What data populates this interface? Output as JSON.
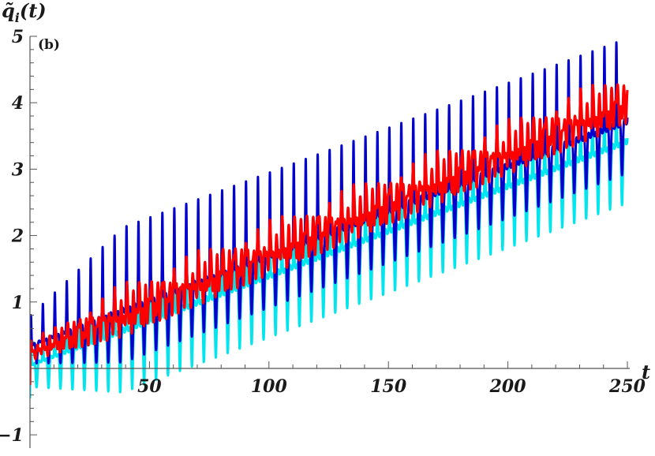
{
  "chart_data": {
    "type": "line",
    "title": "",
    "panel_label": "(b)",
    "xlabel": "t",
    "ylabel": "q̃ᵢ(t)",
    "ylabel_base": "q̃",
    "ylabel_sub": "i",
    "ylabel_arg": "(t)",
    "xlim": [
      0,
      250
    ],
    "ylim": [
      -1.2,
      5
    ],
    "x_ticks": [
      50,
      100,
      150,
      200,
      250
    ],
    "y_ticks": [
      -1,
      1,
      2,
      3,
      4,
      5
    ],
    "x_tick_labels": [
      "50",
      "100",
      "150",
      "200",
      "250"
    ],
    "y_tick_labels": [
      "−1",
      "1",
      "2",
      "3",
      "4",
      "5"
    ],
    "grid": false,
    "legend": "none",
    "oscillation_period": 5,
    "series": [
      {
        "color": "#00e5ee",
        "start": 0.05,
        "slope": 0.0135,
        "peak_amp": 1.0,
        "trough_amp": 0.9
      },
      {
        "color": "#0000cd",
        "start": 0.35,
        "slope": 0.0135,
        "peak_amp": 1.2,
        "trough_amp": 0.75
      },
      {
        "color": "#ff0000",
        "start": 0.25,
        "slope": 0.0152,
        "peak_amp": 0.35,
        "trough_amp": 0.3
      }
    ]
  }
}
